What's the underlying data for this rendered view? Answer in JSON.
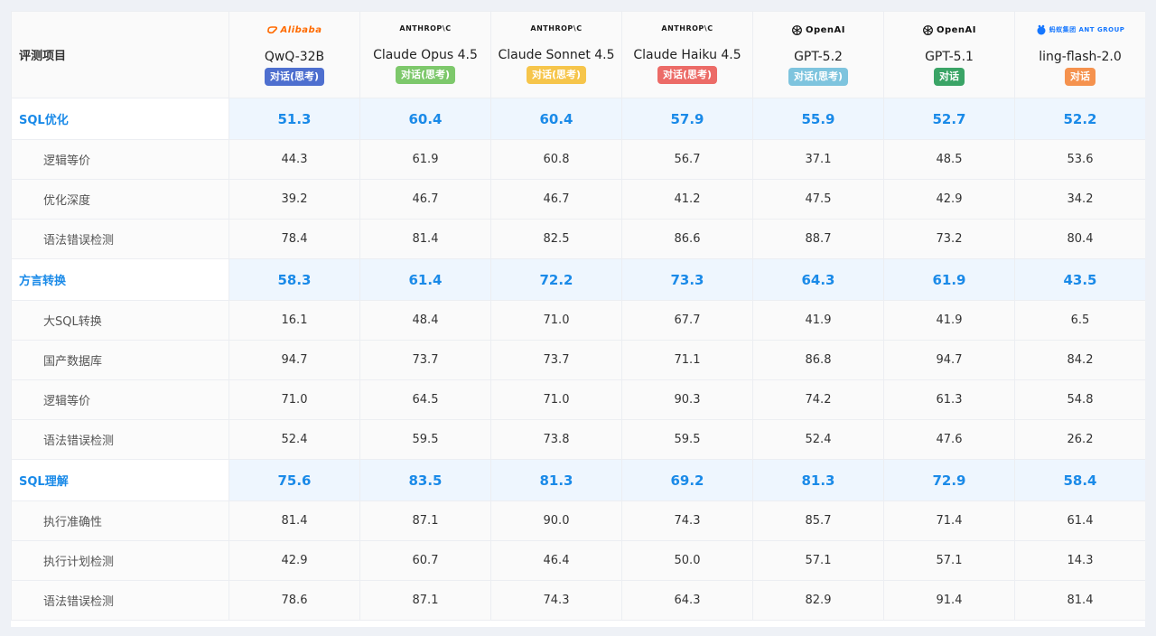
{
  "header": {
    "label": "评测项目"
  },
  "models": [
    {
      "logo": "Alibaba",
      "logo_kind": "alibaba",
      "name": "QwQ-32B",
      "badge": "对话(思考)",
      "badge_color": "#4e6fcf"
    },
    {
      "logo": "ANTHROP\\C",
      "logo_kind": "anthropic",
      "name": "Claude Opus 4.5",
      "badge": "对话(思考)",
      "badge_color": "#7dc86b"
    },
    {
      "logo": "ANTHROP\\C",
      "logo_kind": "anthropic",
      "name": "Claude Sonnet 4.5",
      "badge": "对话(思考)",
      "badge_color": "#f6c54b"
    },
    {
      "logo": "ANTHROP\\C",
      "logo_kind": "anthropic",
      "name": "Claude Haiku 4.5",
      "badge": "对话(思考)",
      "badge_color": "#ec6b67"
    },
    {
      "logo": "OpenAI",
      "logo_kind": "openai",
      "name": "GPT-5.2",
      "badge": "对话(思考)",
      "badge_color": "#7ec4de"
    },
    {
      "logo": "OpenAI",
      "logo_kind": "openai",
      "name": "GPT-5.1",
      "badge": "对话",
      "badge_color": "#3aa466"
    },
    {
      "logo": "蚂蚁集团 ANT GROUP",
      "logo_kind": "ant",
      "name": "ling-flash-2.0",
      "badge": "对话",
      "badge_color": "#f5924e"
    }
  ],
  "rows": [
    {
      "kind": "cat",
      "name": "SQL优化",
      "values": [
        "51.3",
        "60.4",
        "60.4",
        "57.9",
        "55.9",
        "52.7",
        "52.2"
      ]
    },
    {
      "kind": "sub",
      "name": "逻辑等价",
      "values": [
        "44.3",
        "61.9",
        "60.8",
        "56.7",
        "37.1",
        "48.5",
        "53.6"
      ]
    },
    {
      "kind": "sub",
      "name": "优化深度",
      "values": [
        "39.2",
        "46.7",
        "46.7",
        "41.2",
        "47.5",
        "42.9",
        "34.2"
      ]
    },
    {
      "kind": "sub",
      "name": "语法错误检测",
      "values": [
        "78.4",
        "81.4",
        "82.5",
        "86.6",
        "88.7",
        "73.2",
        "80.4"
      ]
    },
    {
      "kind": "cat",
      "name": "方言转换",
      "values": [
        "58.3",
        "61.4",
        "72.2",
        "73.3",
        "64.3",
        "61.9",
        "43.5"
      ]
    },
    {
      "kind": "sub",
      "name": "大SQL转换",
      "values": [
        "16.1",
        "48.4",
        "71.0",
        "67.7",
        "41.9",
        "41.9",
        "6.5"
      ]
    },
    {
      "kind": "sub",
      "name": "国产数据库",
      "values": [
        "94.7",
        "73.7",
        "73.7",
        "71.1",
        "86.8",
        "94.7",
        "84.2"
      ]
    },
    {
      "kind": "sub",
      "name": "逻辑等价",
      "values": [
        "71.0",
        "64.5",
        "71.0",
        "90.3",
        "74.2",
        "61.3",
        "54.8"
      ]
    },
    {
      "kind": "sub",
      "name": "语法错误检测",
      "values": [
        "52.4",
        "59.5",
        "73.8",
        "59.5",
        "52.4",
        "47.6",
        "26.2"
      ]
    },
    {
      "kind": "cat",
      "name": "SQL理解",
      "values": [
        "75.6",
        "83.5",
        "81.3",
        "69.2",
        "81.3",
        "72.9",
        "58.4"
      ]
    },
    {
      "kind": "sub",
      "name": "执行准确性",
      "values": [
        "81.4",
        "87.1",
        "90.0",
        "74.3",
        "85.7",
        "71.4",
        "61.4"
      ]
    },
    {
      "kind": "sub",
      "name": "执行计划检测",
      "values": [
        "42.9",
        "60.7",
        "46.4",
        "50.0",
        "57.1",
        "57.1",
        "14.3"
      ]
    },
    {
      "kind": "sub",
      "name": "语法错误检测",
      "values": [
        "78.6",
        "87.1",
        "74.3",
        "64.3",
        "82.9",
        "91.4",
        "81.4"
      ]
    }
  ]
}
